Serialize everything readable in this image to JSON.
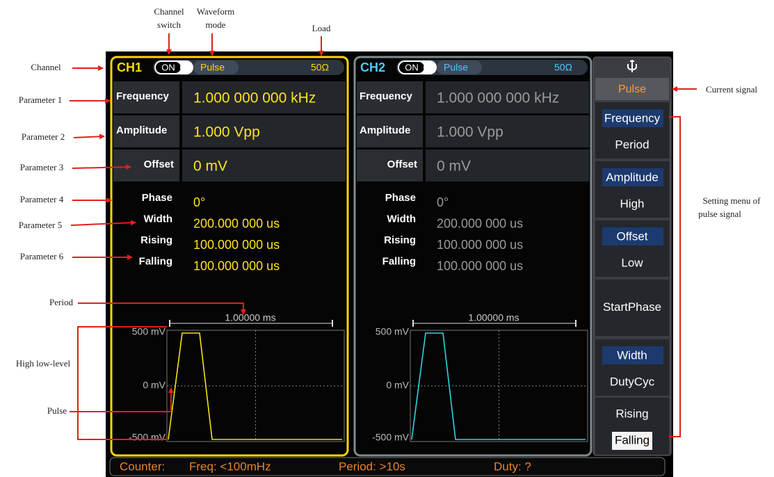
{
  "annotations": {
    "channel_switch": [
      "Channel",
      "switch"
    ],
    "waveform_mode": [
      "Waveform",
      "mode"
    ],
    "load": "Load",
    "channel": "Channel",
    "parameters": [
      "Parameter 1",
      "Parameter 2",
      "Parameter 3",
      "Parameter 4",
      "Parameter 5",
      "Parameter 6"
    ],
    "period": "Period",
    "high_low_level": "High low-level",
    "pulse": "Pulse",
    "current_signal": "Current signal",
    "setting_menu": [
      "Setting menu of",
      "pulse signal"
    ]
  },
  "channels": [
    {
      "name": "CH1",
      "switch": "ON",
      "mode": "Pulse",
      "load": "50Ω",
      "parameters": [
        {
          "label": "Frequency",
          "value": "1.000 000 000 kHz"
        },
        {
          "label": "Amplitude",
          "value": "1.000 Vpp"
        },
        {
          "label": "Offset",
          "value": "0 mV"
        },
        {
          "label": "Phase",
          "value": "0°"
        },
        {
          "label": "Width",
          "value": "200.000 000 us"
        },
        {
          "label": "Rising",
          "value": "100.000 000 us"
        },
        {
          "label": "Falling",
          "value": "100.000 000 us"
        }
      ],
      "plot": {
        "y_labels": [
          "500 mV",
          "0 mV",
          "-500 mV"
        ],
        "period": "1.00000 ms"
      }
    },
    {
      "name": "CH2",
      "switch": "ON",
      "mode": "Pulse",
      "load": "50Ω",
      "parameters": [
        {
          "label": "Frequency",
          "value": "1.000 000 000 kHz"
        },
        {
          "label": "Amplitude",
          "value": "1.000 Vpp"
        },
        {
          "label": "Offset",
          "value": "0 mV"
        },
        {
          "label": "Phase",
          "value": "0°"
        },
        {
          "label": "Width",
          "value": "200.000 000 us"
        },
        {
          "label": "Rising",
          "value": "100.000 000 us"
        },
        {
          "label": "Falling",
          "value": "100.000 000 us"
        }
      ],
      "plot": {
        "y_labels": [
          "500 mV",
          "0 mV",
          "-500 mV"
        ],
        "period": "1.00000 ms"
      }
    }
  ],
  "menu": {
    "current": "Pulse",
    "items": [
      [
        "Frequency",
        "Period"
      ],
      [
        "Amplitude",
        "High"
      ],
      [
        "Offset",
        "Low"
      ],
      [
        "StartPhase"
      ],
      [
        "Width",
        "DutyCyc"
      ],
      [
        "Rising",
        "Falling"
      ]
    ]
  },
  "status": {
    "counter": "Counter:",
    "freq": "Freq: <100mHz",
    "period": "Period: >10s",
    "duty": "Duty: ?"
  }
}
